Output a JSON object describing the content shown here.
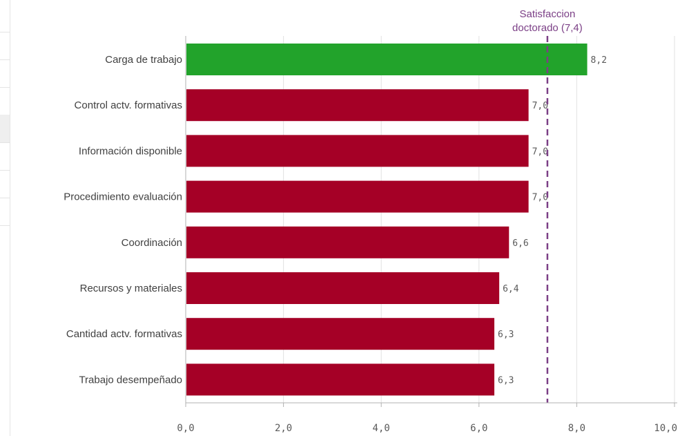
{
  "chart_data": {
    "type": "bar",
    "orientation": "horizontal",
    "categories": [
      "Carga de trabajo",
      "Control actv. formativas",
      "Información disponible",
      "Procedimiento evaluación",
      "Coordinación",
      "Recursos y materiales",
      "Cantidad actv. formativas",
      "Trabajo desempeñado"
    ],
    "values": [
      8.2,
      7.0,
      7.0,
      7.0,
      6.6,
      6.4,
      6.3,
      6.3
    ],
    "value_labels": [
      "8,2",
      "7,0",
      "7,0",
      "7,0",
      "6,6",
      "6,4",
      "6,3",
      "6,3"
    ],
    "bar_colors": [
      "#22a32b",
      "#a50026",
      "#a50026",
      "#a50026",
      "#a50026",
      "#a50026",
      "#a50026",
      "#a50026"
    ],
    "xlim": [
      0,
      10
    ],
    "x_ticks": [
      0,
      2,
      4,
      6,
      8,
      10
    ],
    "x_tick_labels": [
      "0,0",
      "2,0",
      "4,0",
      "6,0",
      "8,0",
      "10,0"
    ],
    "grid": true,
    "reference_line": {
      "value": 7.4,
      "label_lines": [
        "Satisfaccion",
        "doctorado (7,4)"
      ],
      "color": "#7b3f86",
      "style": "dashed"
    }
  }
}
